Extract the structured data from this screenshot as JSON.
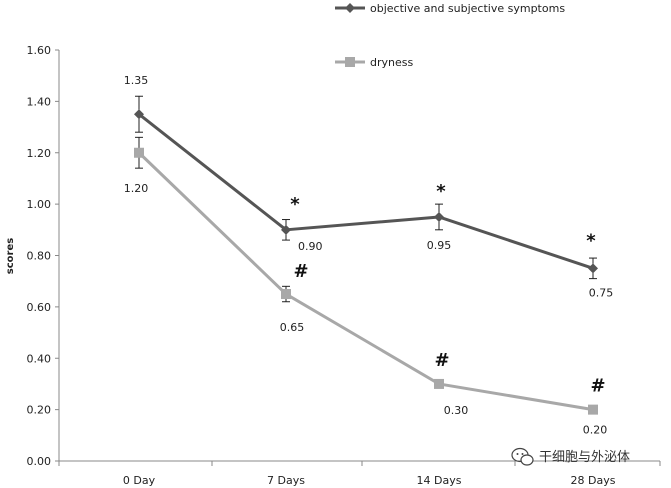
{
  "chart_data": {
    "type": "line",
    "categories": [
      "0 Day",
      "7 Days",
      "14 Days",
      "28 Days"
    ],
    "ylabel": "scores",
    "ylim": [
      0,
      1.6
    ],
    "yticks": [
      "0.00",
      "0.20",
      "0.40",
      "0.60",
      "0.80",
      "1.00",
      "1.20",
      "1.40",
      "1.60"
    ],
    "grid": false,
    "legend_position": "top-right",
    "series": [
      {
        "name": "objective and subjective symptoms",
        "color": "#555555",
        "marker": "diamond",
        "values": [
          1.35,
          0.9,
          0.95,
          0.75
        ],
        "errors": [
          0.07,
          0.04,
          0.05,
          0.04
        ],
        "labels": [
          "1.35",
          "0.90",
          "0.95",
          "0.75"
        ],
        "significance": [
          "",
          "*",
          "*",
          "*"
        ]
      },
      {
        "name": "dryness",
        "color": "#a8a8a8",
        "marker": "square",
        "values": [
          1.2,
          0.65,
          0.3,
          0.2
        ],
        "errors": [
          0.06,
          0.03,
          0.0,
          0.0
        ],
        "labels": [
          "1.20",
          "0.65",
          "0.30",
          "0.20"
        ],
        "significance": [
          "",
          "#",
          "#",
          "#"
        ]
      }
    ]
  },
  "watermark": {
    "icon": "wechat-icon",
    "text": "干细胞与外泌体"
  }
}
